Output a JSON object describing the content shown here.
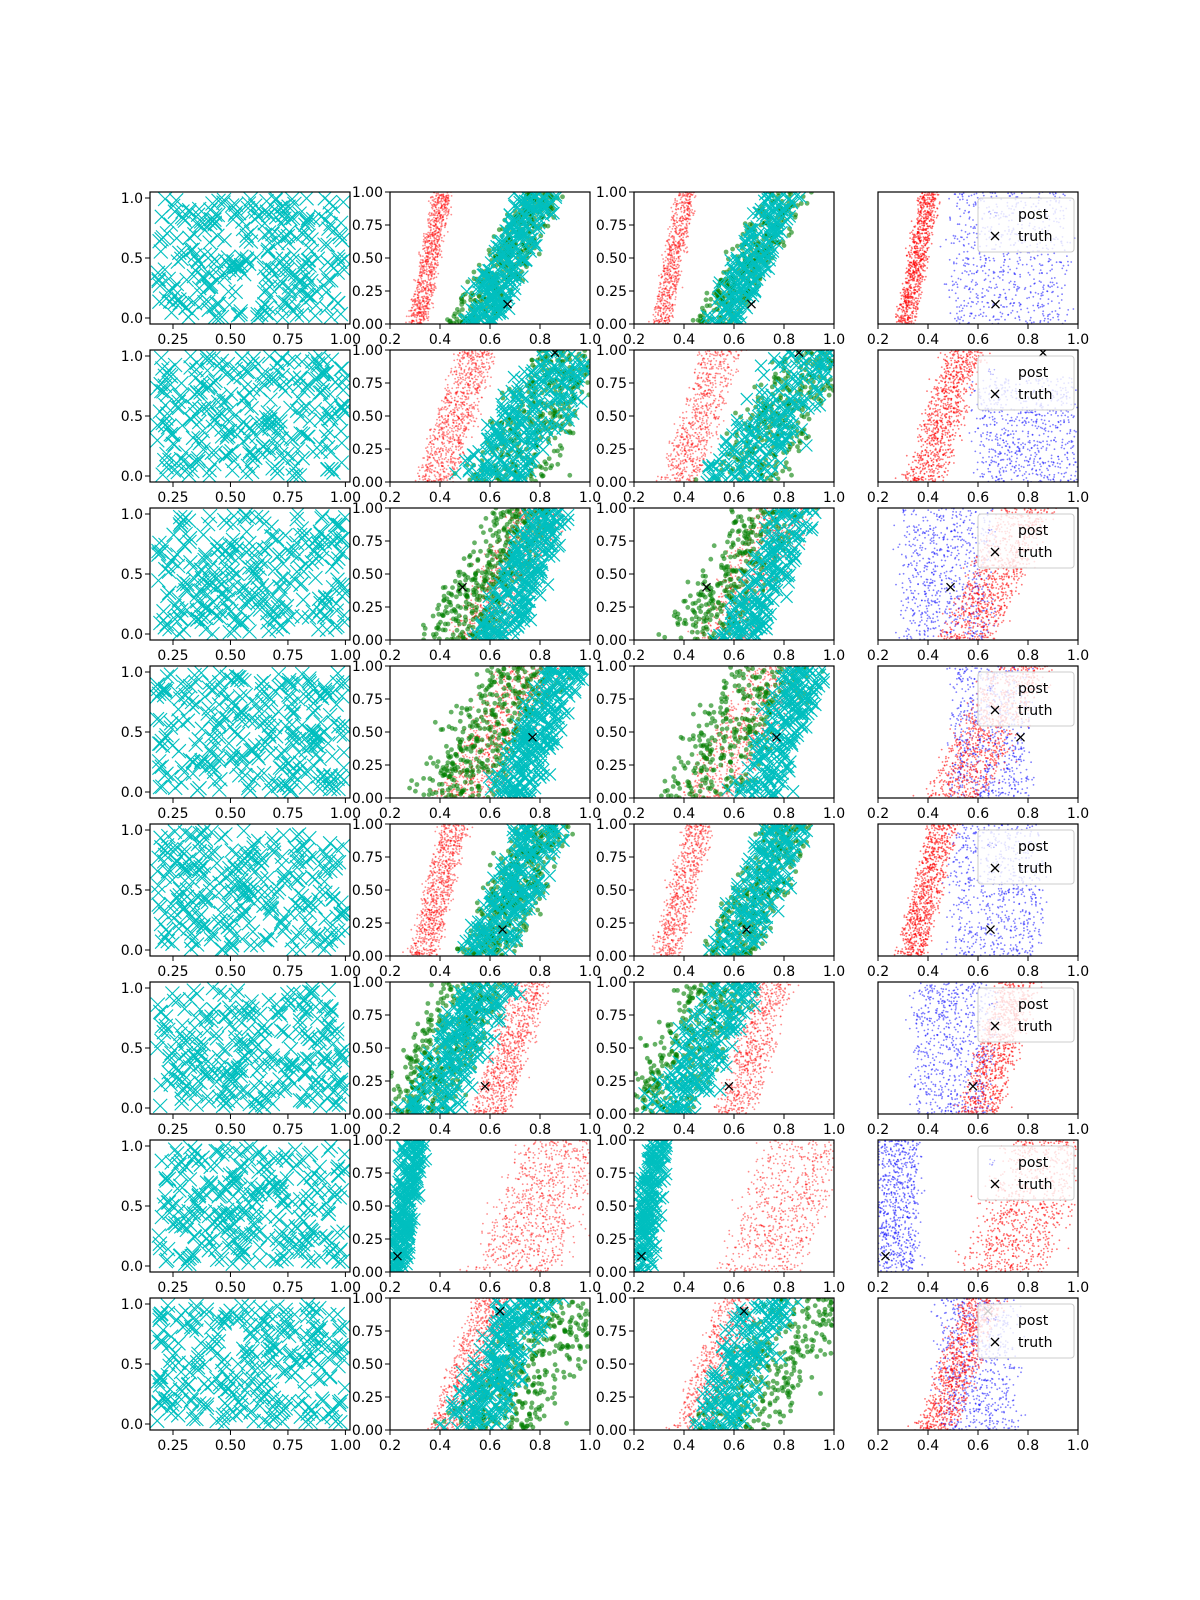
{
  "figure": {
    "rows": 8,
    "cols": 4
  },
  "legend": {
    "entries": [
      "post",
      "truth"
    ]
  },
  "colors": {
    "cyan": "#00bfbf",
    "red": "#ff0000",
    "green": "#007f00",
    "blue": "#0000ff",
    "truth": "#000000"
  },
  "chart_data": {
    "type": "scatter",
    "grid": false,
    "column_axes": [
      {
        "col": 0,
        "xlim": [
          0.15,
          1.02
        ],
        "ylim": [
          -0.05,
          1.05
        ],
        "xticks": [
          "0.25",
          "0.50",
          "0.75",
          "1.00"
        ],
        "xtick_values": [
          0.25,
          0.5,
          0.75,
          1.0
        ],
        "yticks": [
          "0.0",
          "0.5",
          "1.0"
        ],
        "ytick_values": [
          0,
          0.5,
          1.0
        ],
        "series": [
          "cyan x markers (uniform samples)"
        ]
      },
      {
        "col": 1,
        "xlim": [
          0.2,
          1.0
        ],
        "ylim": [
          0,
          1
        ],
        "xticks": [
          "0.2",
          "0.4",
          "0.6",
          "0.8",
          "1.0"
        ],
        "xtick_values": [
          0.2,
          0.4,
          0.6,
          0.8,
          1.0
        ],
        "yticks": [
          "0.00",
          "0.25",
          "0.50",
          "0.75",
          "1.00"
        ],
        "ytick_values": [
          0,
          0.25,
          0.5,
          0.75,
          1.0
        ],
        "series": [
          "red dots",
          "green dots",
          "cyan x markers",
          "truth"
        ]
      },
      {
        "col": 2,
        "xlim": [
          0.2,
          1.0
        ],
        "ylim": [
          0,
          1
        ],
        "xticks": [
          "0.2",
          "0.4",
          "0.6",
          "0.8",
          "1.0"
        ],
        "xtick_values": [
          0.2,
          0.4,
          0.6,
          0.8,
          1.0
        ],
        "yticks": [
          "0.00",
          "0.25",
          "0.50",
          "0.75",
          "1.00"
        ],
        "ytick_values": [
          0,
          0.25,
          0.5,
          0.75,
          1.0
        ],
        "series": [
          "red dots",
          "green dots",
          "cyan x markers",
          "truth"
        ]
      },
      {
        "col": 3,
        "xlim": [
          0.2,
          1.0
        ],
        "ylim": [
          0,
          1
        ],
        "xticks": [
          "0.2",
          "0.4",
          "0.6",
          "0.8",
          "1.0"
        ],
        "xtick_values": [
          0.2,
          0.4,
          0.6,
          0.8,
          1.0
        ],
        "yticks": [],
        "ytick_values": [],
        "series": [
          "post (blue and red dots)",
          "truth"
        ],
        "legend": "upper right"
      }
    ],
    "rows": [
      {
        "row": 1,
        "truth": [
          0.67,
          0.15
        ],
        "red_band": {
          "x_at_y0": 0.31,
          "x_at_y1": 0.41,
          "width": 0.07
        },
        "green_band": {
          "x_at_y0": 0.52,
          "x_at_y1": 0.82,
          "width": 0.16
        },
        "cyan_band": {
          "x_at_y0": 0.55,
          "x_at_y1": 0.8,
          "width": 0.14
        },
        "blue_cluster": {
          "x": [
            0.5,
            0.95
          ],
          "y": [
            0.0,
            1.0
          ]
        }
      },
      {
        "row": 2,
        "truth": [
          0.86,
          0.98
        ],
        "red_band": {
          "x_at_y0": 0.38,
          "x_at_y1": 0.55,
          "width": 0.14
        },
        "green_band": {
          "x_at_y0": 0.65,
          "x_at_y1": 0.95,
          "width": 0.28
        },
        "cyan_band": {
          "x_at_y0": 0.6,
          "x_at_y1": 0.92,
          "width": 0.25
        },
        "blue_cluster": {
          "x": [
            0.6,
            1.0
          ],
          "y": [
            0.0,
            0.8
          ]
        }
      },
      {
        "row": 3,
        "truth": [
          0.49,
          0.4
        ],
        "red_band": {
          "x_at_y0": 0.55,
          "x_at_y1": 0.8,
          "width": 0.2
        },
        "green_band": {
          "x_at_y0": 0.45,
          "x_at_y1": 0.75,
          "width": 0.25
        },
        "cyan_band": {
          "x_at_y0": 0.62,
          "x_at_y1": 0.85,
          "width": 0.16
        },
        "blue_cluster": {
          "x": [
            0.3,
            0.65
          ],
          "y": [
            0.0,
            1.0
          ]
        }
      },
      {
        "row": 4,
        "truth": [
          0.77,
          0.46
        ],
        "red_band": {
          "x_at_y0": 0.5,
          "x_at_y1": 0.78,
          "width": 0.22
        },
        "green_band": {
          "x_at_y0": 0.45,
          "x_at_y1": 0.75,
          "width": 0.3
        },
        "cyan_band": {
          "x_at_y0": 0.68,
          "x_at_y1": 0.9,
          "width": 0.16
        },
        "blue_cluster": {
          "x": [
            0.5,
            0.8
          ],
          "y": [
            0.0,
            1.0
          ]
        }
      },
      {
        "row": 5,
        "truth": [
          0.65,
          0.2
        ],
        "red_band": {
          "x_at_y0": 0.33,
          "x_at_y1": 0.46,
          "width": 0.1
        },
        "green_band": {
          "x_at_y0": 0.58,
          "x_at_y1": 0.82,
          "width": 0.2
        },
        "cyan_band": {
          "x_at_y0": 0.58,
          "x_at_y1": 0.82,
          "width": 0.18
        },
        "blue_cluster": {
          "x": [
            0.5,
            0.85
          ],
          "y": [
            0.0,
            1.0
          ]
        }
      },
      {
        "row": 6,
        "truth": [
          0.58,
          0.21
        ],
        "red_band": {
          "x_at_y0": 0.6,
          "x_at_y1": 0.76,
          "width": 0.14
        },
        "green_band": {
          "x_at_y0": 0.28,
          "x_at_y1": 0.55,
          "width": 0.26
        },
        "cyan_band": {
          "x_at_y0": 0.35,
          "x_at_y1": 0.6,
          "width": 0.2
        },
        "blue_cluster": {
          "x": [
            0.35,
            0.65
          ],
          "y": [
            0.0,
            1.0
          ]
        }
      },
      {
        "row": 7,
        "truth": [
          0.23,
          0.12
        ],
        "red_band": {
          "x_at_y0": 0.7,
          "x_at_y1": 0.9,
          "width": 0.3
        },
        "green_band": null,
        "cyan_band": {
          "x_at_y0": 0.22,
          "x_at_y1": 0.3,
          "width": 0.08
        },
        "blue_cluster": {
          "x": [
            0.2,
            0.35
          ],
          "y": [
            0.0,
            1.0
          ]
        }
      },
      {
        "row": 8,
        "truth": [
          0.64,
          0.9
        ],
        "red_band": {
          "x_at_y0": 0.43,
          "x_at_y1": 0.62,
          "width": 0.14
        },
        "green_band": {
          "x_at_y0": 0.6,
          "x_at_y1": 0.92,
          "width": 0.32
        },
        "cyan_band": {
          "x_at_y0": 0.52,
          "x_at_y1": 0.75,
          "width": 0.2
        },
        "blue_cluster": {
          "x": [
            0.45,
            0.75
          ],
          "y": [
            0.0,
            1.0
          ]
        }
      }
    ]
  }
}
